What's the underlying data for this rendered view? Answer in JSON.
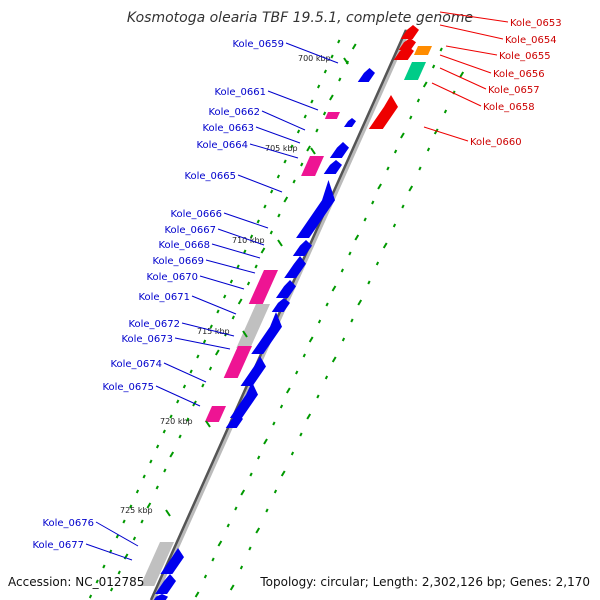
{
  "title": "Kosmotoga olearia TBF 19.5.1, complete genome",
  "footer": {
    "accession": "Accession: NC_012785",
    "summary": "Topology: circular; Length: 2,302,126 bp; Genes: 2,170"
  },
  "colors": {
    "forward_cds": "#0000ee",
    "reverse_cds": "#ee0000",
    "trna": "#ee1493",
    "rrna": "#ff8c00",
    "misc": "#00cc88",
    "pseudo": "#c0c0c0",
    "backbone": "#555555",
    "gc_marks": "#009900"
  },
  "ticks": [
    "700 kbp",
    "705 kbp",
    "710 kbp",
    "715 kbp",
    "720 kbp",
    "725 kbp"
  ],
  "labels_right": [
    "Kole_0653",
    "Kole_0654",
    "Kole_0655",
    "Kole_0656",
    "Kole_0657",
    "Kole_0658",
    "Kole_0660"
  ],
  "labels_left": [
    "Kole_0659",
    "Kole_0661",
    "Kole_0662",
    "Kole_0663",
    "Kole_0664",
    "Kole_0665",
    "Kole_0666",
    "Kole_0667",
    "Kole_0668",
    "Kole_0669",
    "Kole_0670",
    "Kole_0671",
    "Kole_0672",
    "Kole_0673",
    "Kole_0674",
    "Kole_0675",
    "Kole_0676",
    "Kole_0677"
  ]
}
